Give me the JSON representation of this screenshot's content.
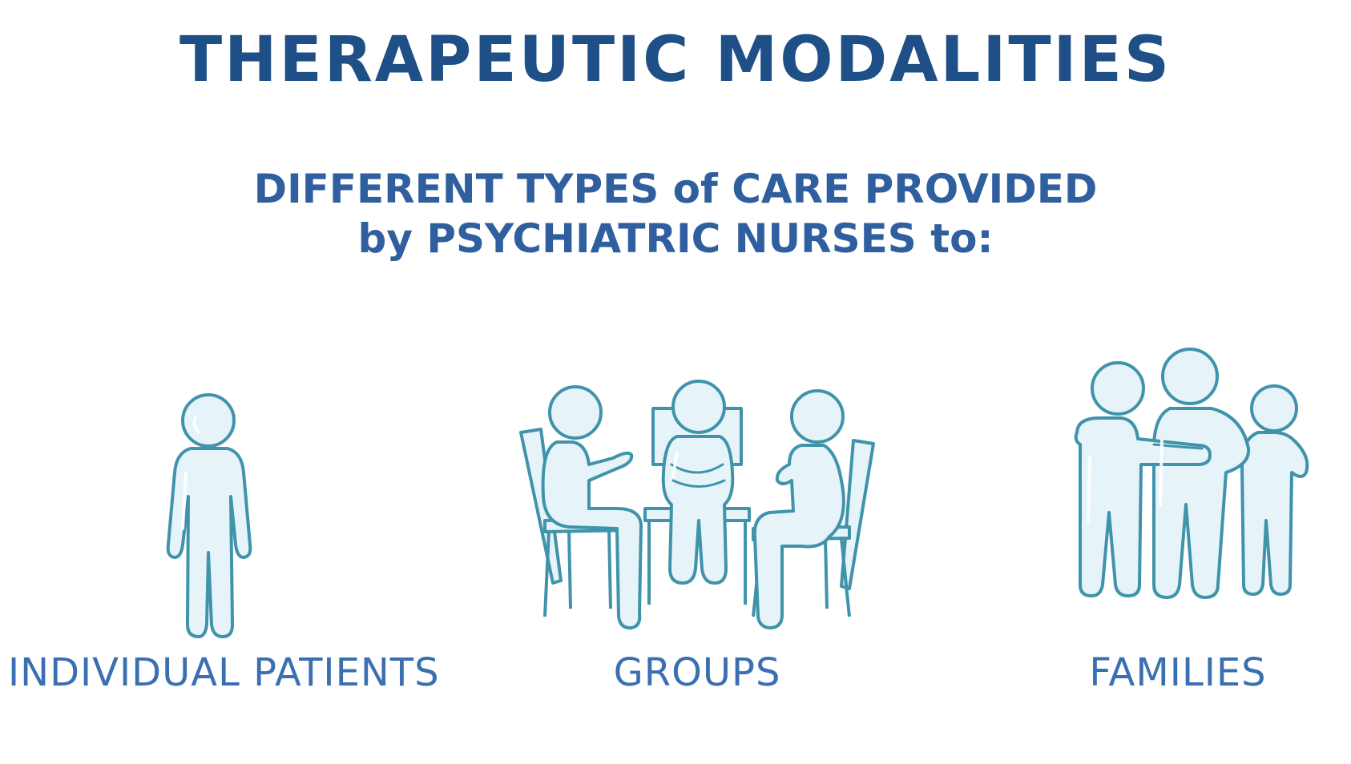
{
  "title": "THERAPEUTIC MODALITIES",
  "subtitle": {
    "line1": "DIFFERENT TYPES of CARE PROVIDED",
    "line2": "by PSYCHIATRIC NURSES to:"
  },
  "categories": [
    {
      "label": "INDIVIDUAL PATIENTS",
      "icon": "single-person-icon"
    },
    {
      "label": "GROUPS",
      "icon": "group-therapy-icon"
    },
    {
      "label": "FAMILIES",
      "icon": "family-hug-icon"
    }
  ],
  "colors": {
    "title": "#1e4f86",
    "subtitle": "#2f5f9e",
    "label": "#3a6fb1",
    "figure_fill": "#e6f4f9",
    "figure_stroke": "#3f93ab"
  }
}
